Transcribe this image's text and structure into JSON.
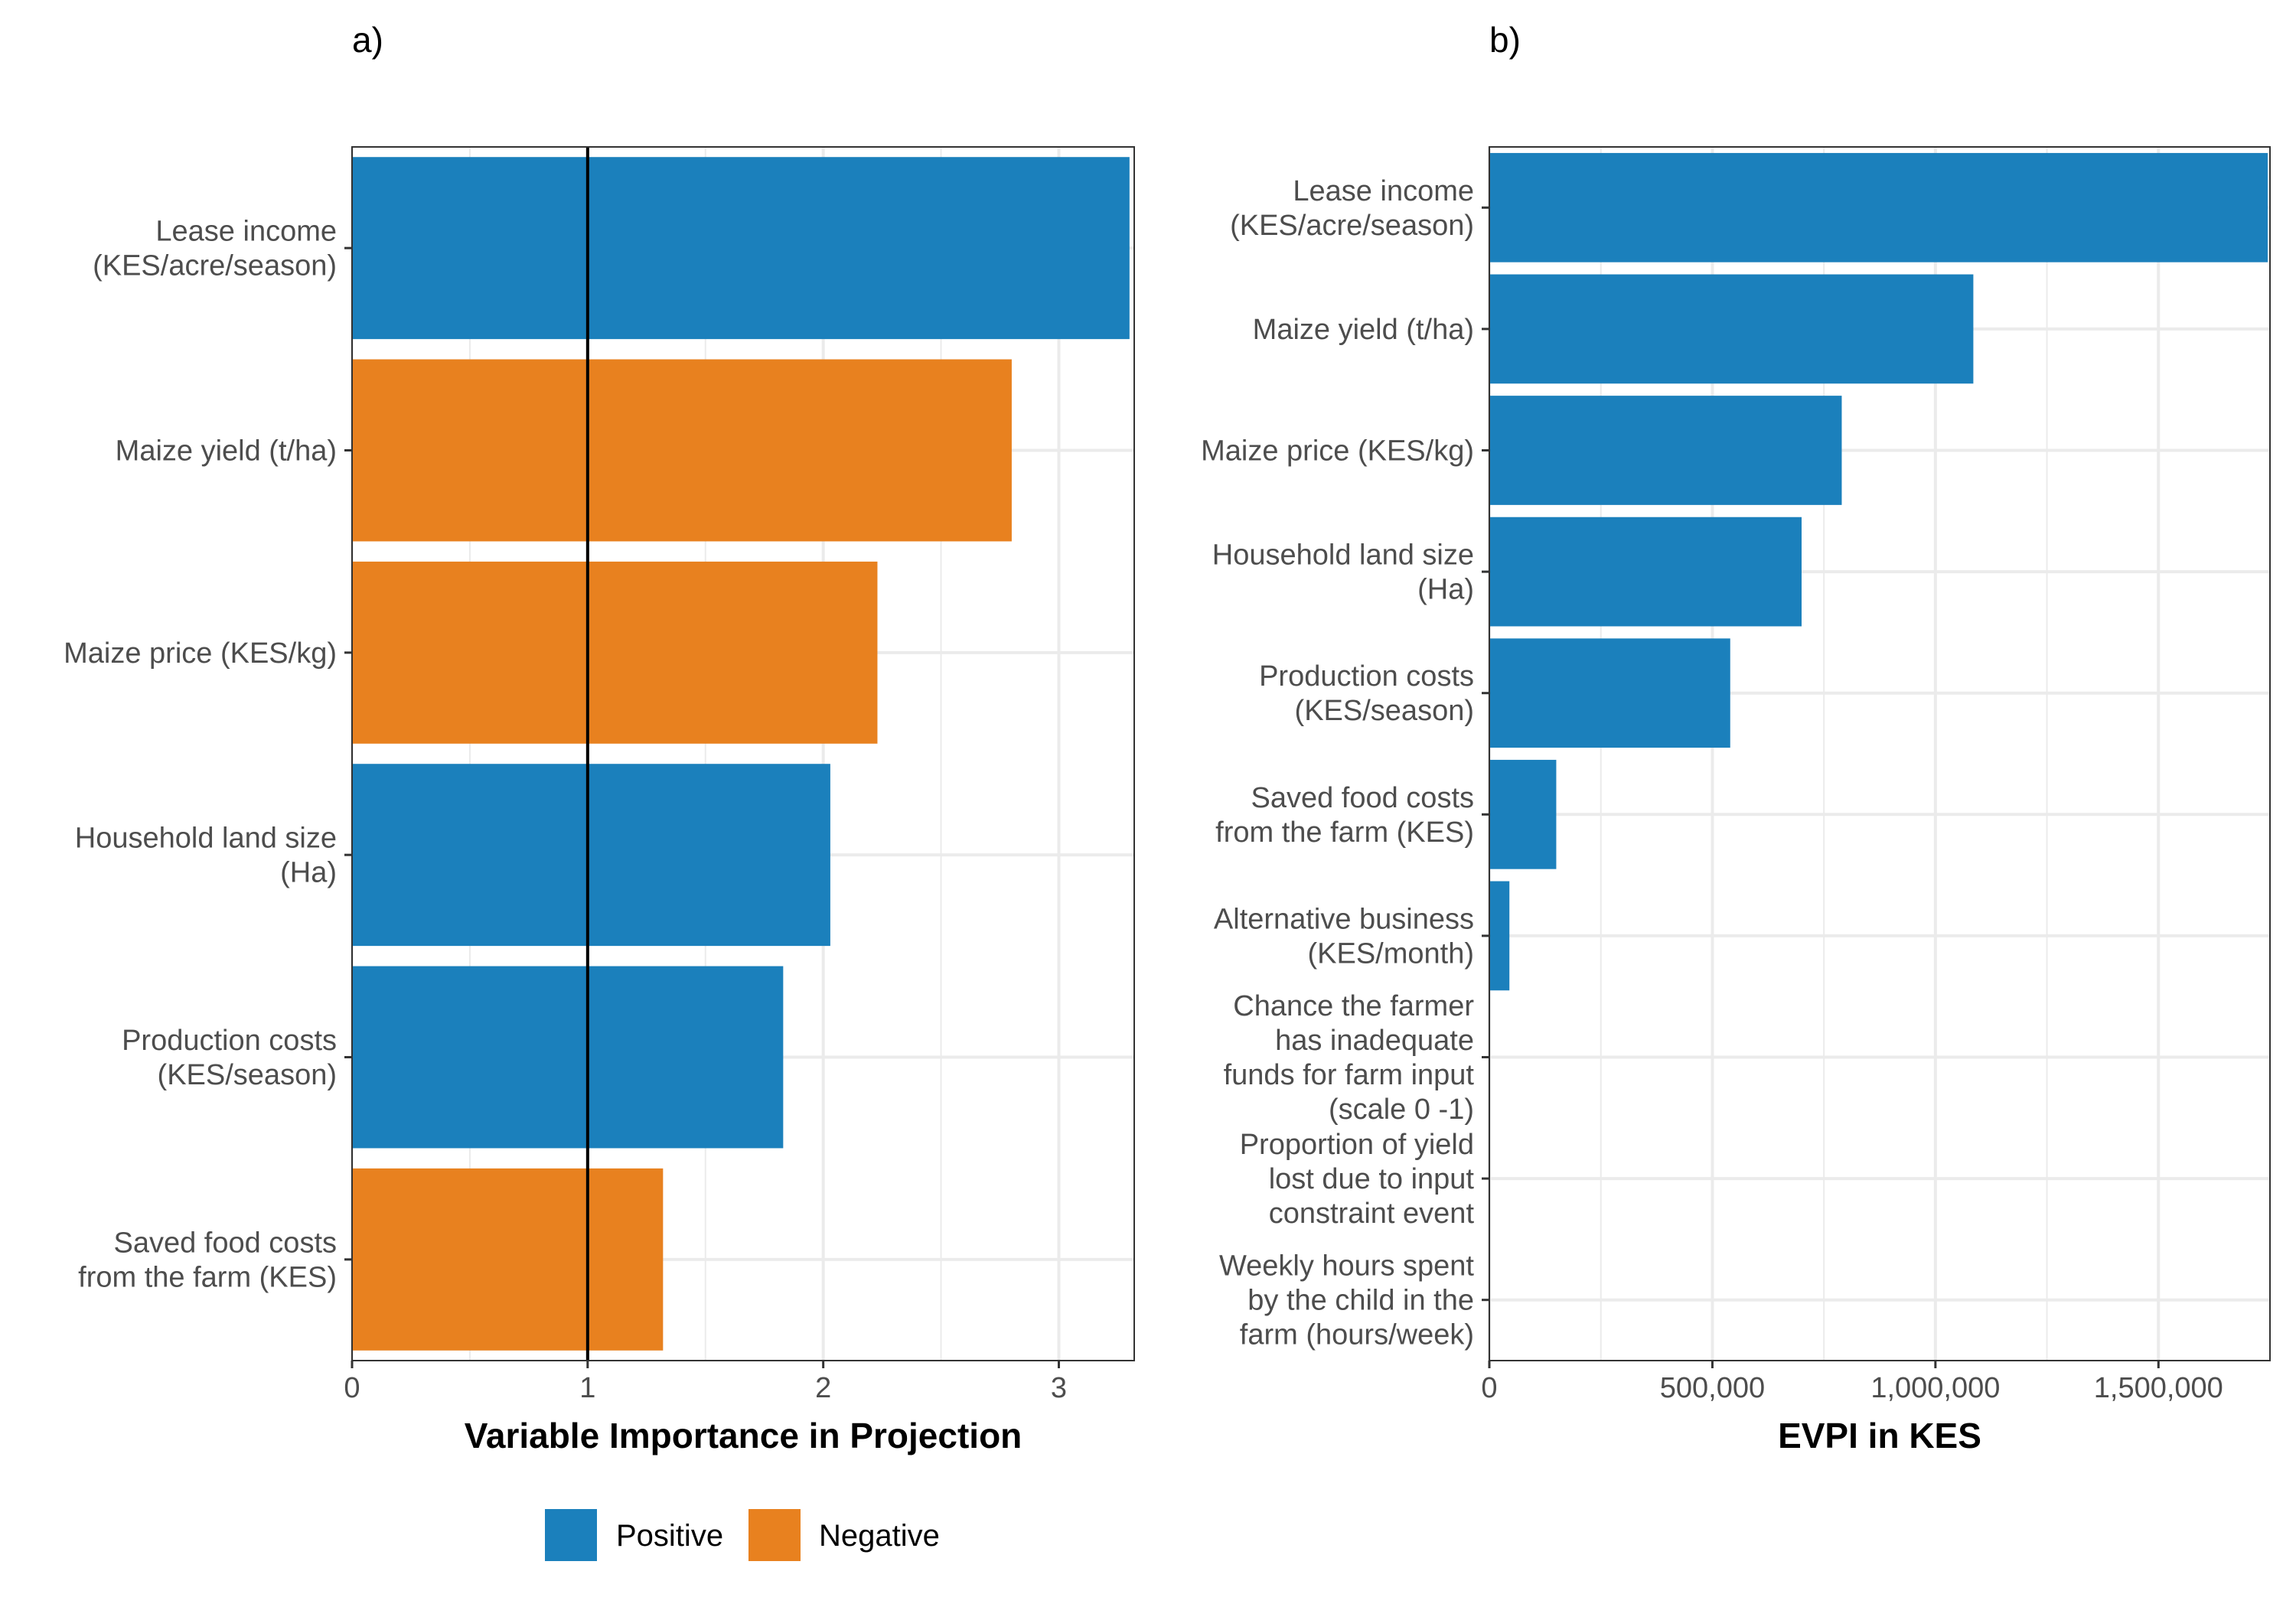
{
  "chart_data": [
    {
      "panel": "a)",
      "type": "bar",
      "orientation": "horizontal",
      "xlabel": "Variable Importance in Projection",
      "categories": [
        "Lease income\n(KES/acre/season)",
        "Maize yield (t/ha)",
        "Maize price (KES/kg)",
        "Household land size\n(Ha)",
        "Production costs\n(KES/season)",
        "Saved food costs\nfrom the farm (KES)"
      ],
      "values": [
        3.3,
        2.8,
        2.23,
        2.03,
        1.83,
        1.32
      ],
      "signs": [
        "Positive",
        "Negative",
        "Negative",
        "Positive",
        "Positive",
        "Negative"
      ],
      "xlim": [
        0,
        3.32
      ],
      "xticks": [
        0,
        1,
        2,
        3
      ],
      "xtick_labels": [
        "0",
        "1",
        "2",
        "3"
      ],
      "reference_line": 1,
      "grid": true
    },
    {
      "panel": "b)",
      "type": "bar",
      "orientation": "horizontal",
      "xlabel": "EVPI in KES",
      "categories": [
        "Lease income\n(KES/acre/season)",
        "Maize yield (t/ha)",
        "Maize price (KES/kg)",
        "Household land size\n(Ha)",
        "Production costs\n(KES/season)",
        "Saved food costs\nfrom the farm (KES)",
        "Alternative business\n(KES/month)",
        "Chance the farmer\nhas inadequate\nfunds for farm input\n(scale 0 -1)",
        "Proportion of yield\nlost due to input\nconstraint event",
        "Weekly hours spent\nby the child in the\nfarm (hours/week)"
      ],
      "values": [
        1745000,
        1085000,
        790000,
        700000,
        540000,
        150000,
        45000,
        0,
        0,
        0
      ],
      "xlim": [
        0,
        1750000
      ],
      "xticks": [
        0,
        500000,
        1000000,
        1500000
      ],
      "xtick_labels": [
        "0",
        "500,000",
        "1,000,000",
        "1,500,000"
      ],
      "grid": true
    }
  ],
  "legend": {
    "position": "bottom",
    "items": [
      {
        "label": "Positive",
        "color": "#1b80bc"
      },
      {
        "label": "Negative",
        "color": "#e8811f"
      }
    ]
  },
  "colors": {
    "positive": "#1b80bc",
    "negative": "#e8811f",
    "grid": "#ebebeb",
    "frame": "#333333"
  }
}
